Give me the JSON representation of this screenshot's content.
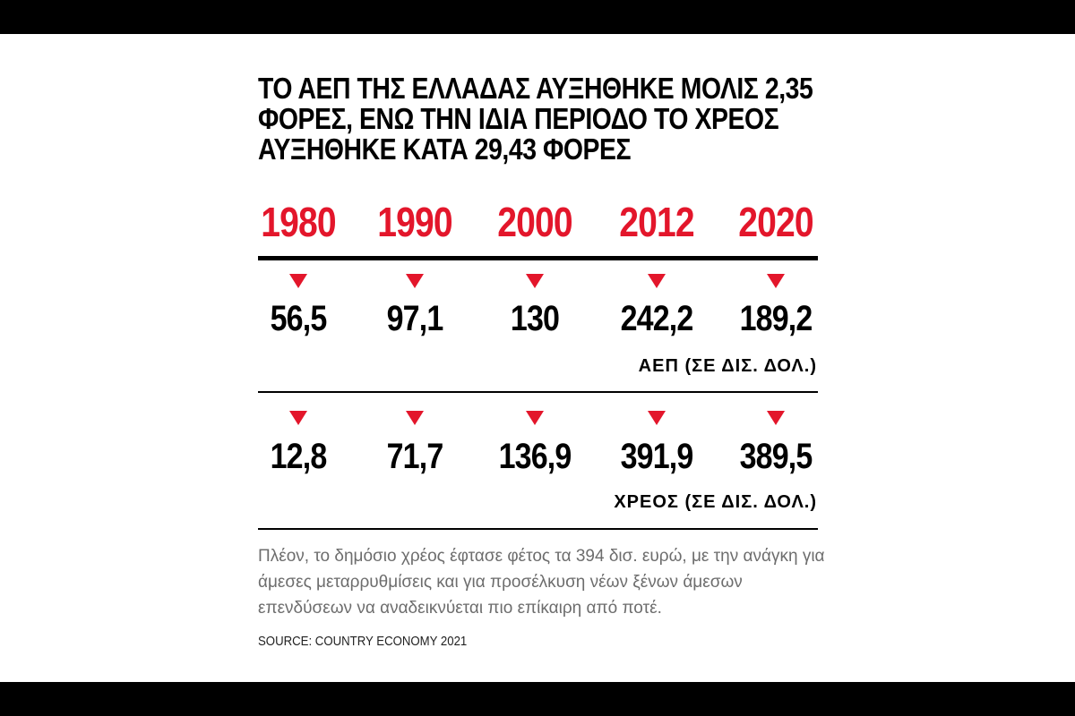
{
  "headline": {
    "line1": "ΤΟ ΑΕΠ ΤΗΣ ΕΛΛΑΔΑΣ ΑΥΞΗΘΗΚΕ ΜΟΛΙΣ 2,35",
    "line2": "ΦΟΡΕΣ, ΕΝΩ ΤΗΝ ΙΔΙΑ ΠΕΡΙΟΔΟ ΤΟ ΧΡΕΟΣ",
    "line3": "ΑΥΞΗΘΗΚΕ ΚΑΤΑ 29,43 ΦΟΡΕΣ"
  },
  "colors": {
    "accent": "#e3162b",
    "text": "#000000",
    "note": "#6d6d6d"
  },
  "chart_data": {
    "type": "table",
    "categories": [
      "1980",
      "1990",
      "2000",
      "2012",
      "2020"
    ],
    "series": [
      {
        "name": "ΑΕΠ (ΣΕ ΔΙΣ. ΔΟΛ.)",
        "values": [
          56.5,
          97.1,
          130,
          242.2,
          189.2
        ],
        "labels": [
          "56,5",
          "97,1",
          "130",
          "242,2",
          "189,2"
        ]
      },
      {
        "name": "ΧΡΕΟΣ (ΣΕ ΔΙΣ. ΔΟΛ.)",
        "values": [
          12.8,
          71.7,
          136.9,
          391.9,
          389.5
        ],
        "labels": [
          "12,8",
          "71,7",
          "136,9",
          "391,9",
          "389,5"
        ]
      }
    ],
    "marker": "down-triangle-icon"
  },
  "note": "Πλέον, το δημόσιο χρέος έφτασε φέτος τα 394 δισ. ευρώ, με την ανάγκη για άμεσες μεταρρυθμίσεις και για προσέλκυση νέων ξένων άμεσων επενδύσεων να αναδεικνύεται πιο επίκαιρη από ποτέ.",
  "source": "SOURCE: COUNTRY ECONOMY 2021"
}
